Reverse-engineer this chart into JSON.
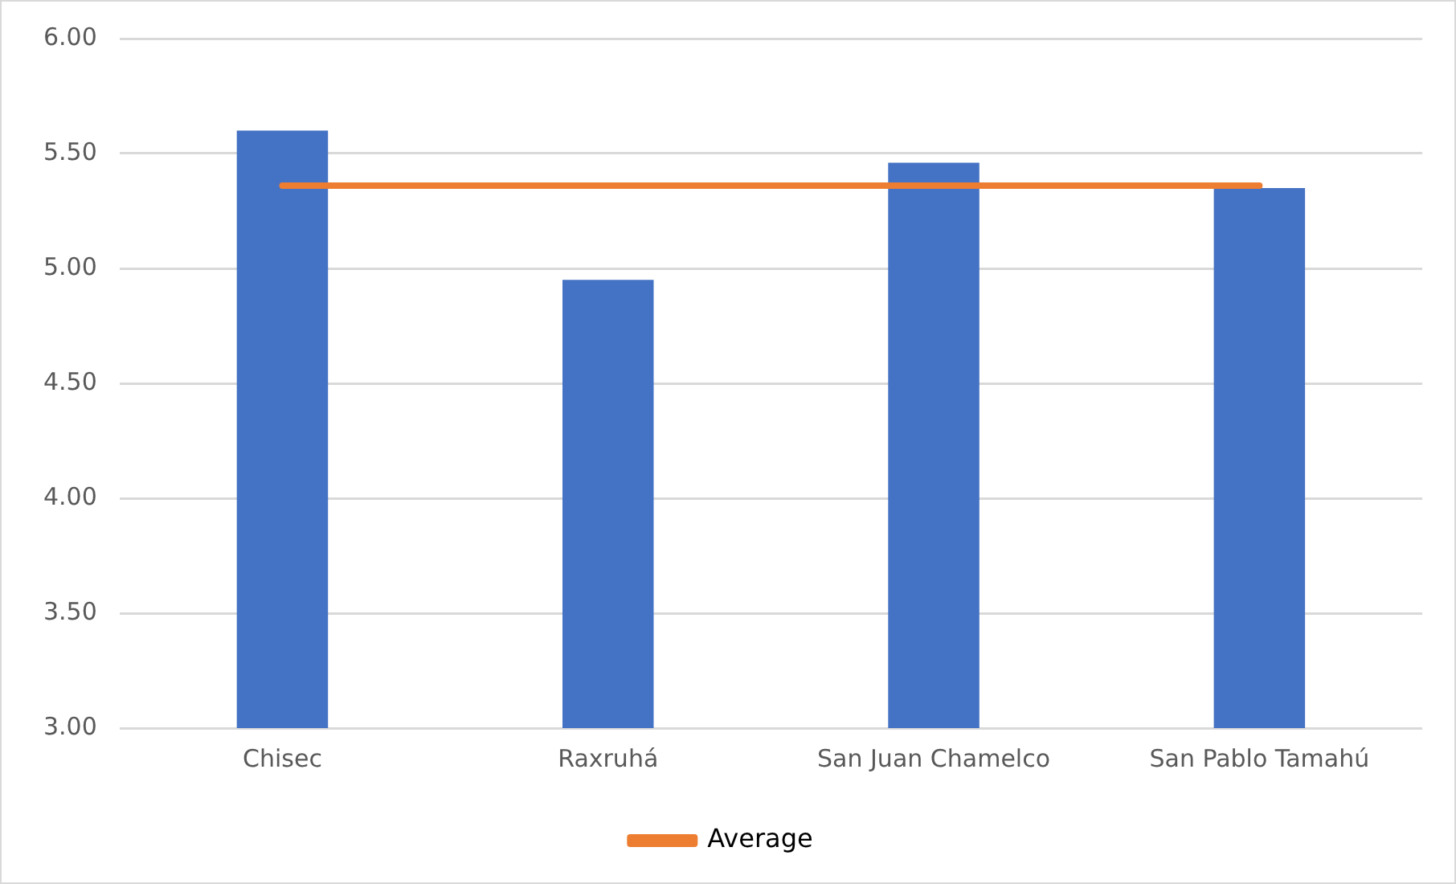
{
  "chart_data": {
    "type": "bar",
    "categories": [
      "Chisec",
      "Raxruhá",
      "San Juan Chamelco",
      "San Pablo Tamahú"
    ],
    "series": [
      {
        "color": "#4472c4",
        "values": [
          5.6,
          4.95,
          5.46,
          5.35
        ]
      },
      {
        "type": "line",
        "name": "Average",
        "color": "#ed7d31",
        "values": [
          5.36,
          5.36,
          5.36,
          5.36
        ]
      }
    ],
    "ylim": [
      3,
      6
    ],
    "yticks": [
      {
        "value": 3,
        "label": "3.00"
      },
      {
        "value": 3.5,
        "label": "3.50"
      },
      {
        "value": 4,
        "label": "4.00"
      },
      {
        "value": 4.5,
        "label": "4.50"
      },
      {
        "value": 5,
        "label": "5.00"
      },
      {
        "value": 5.5,
        "label": "5.50"
      },
      {
        "value": 6,
        "label": "6.00"
      }
    ],
    "grid": "y",
    "legend": "bottom",
    "marker": "none",
    "line_style": "solid"
  }
}
